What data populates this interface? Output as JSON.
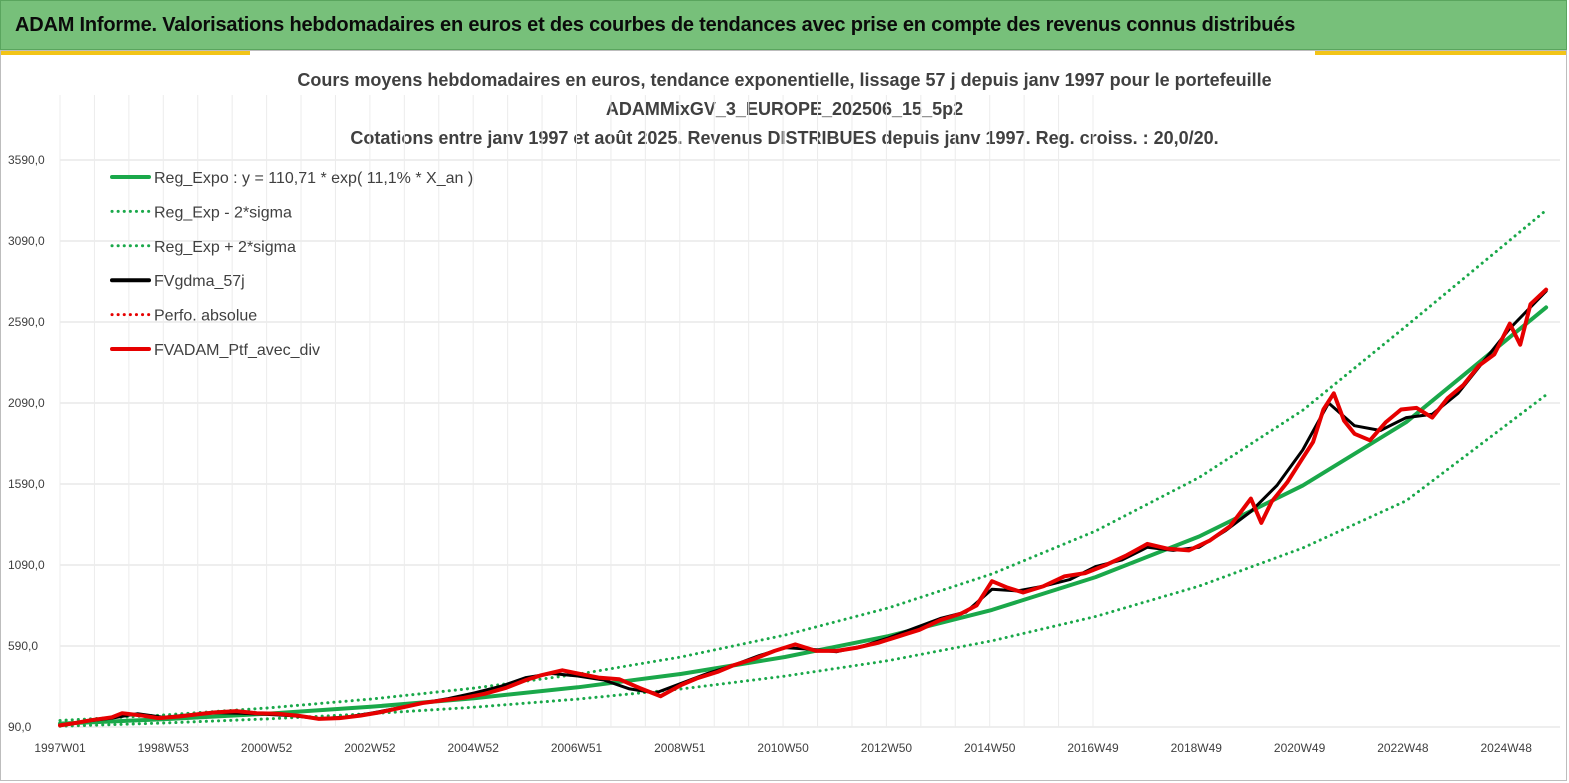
{
  "header": {
    "title": "ADAM Informe. Valorisations hebdomadaires en euros et des courbes de tendances avec prise en compte des revenus connus distribués"
  },
  "chart_data": {
    "type": "line",
    "title_lines": [
      "Cours moyens hebdomadaires  en euros, tendance exponentielle, lissage 57 j depuis janv 1997 pour le portefeuille",
      "ADAMMixGV_3_EUROPE_202506_15_5p2",
      "Cotations  entre janv 1997 et août 2025. Revenus DISTRIBUES depuis janv 1997. Reg. croiss. : 20,0/20."
    ],
    "x_ticks": [
      "1997W01",
      "1998W53",
      "2000W52",
      "2002W52",
      "2004W52",
      "2006W51",
      "2008W51",
      "2010W50",
      "2012W50",
      "2014W50",
      "2016W49",
      "2018W49",
      "2020W49",
      "2022W48",
      "2024W48"
    ],
    "y_ticks": [
      "90,0",
      "590,0",
      "1090,0",
      "1590,0",
      "2090,0",
      "2590,0",
      "3090,0",
      "3590,0"
    ],
    "ylim": [
      90,
      3590
    ],
    "grid": true,
    "legend_position": "top-left",
    "series": [
      {
        "name": "Reg_Expo : y = 110,71 * exp( 11,1% *  X_an )",
        "color": "#1aa84a",
        "style": "solid",
        "x": [
          1997.0,
          1999.0,
          2001.0,
          2003.0,
          2005.0,
          2007.0,
          2009.0,
          2011.0,
          2013.0,
          2015.0,
          2017.0,
          2019.0,
          2021.0,
          2023.0,
          2025.7
        ],
        "y": [
          110.7,
          138,
          172,
          215,
          268,
          335,
          418,
          522,
          651,
          813,
          1015,
          1266,
          1580,
          1972,
          2680
        ]
      },
      {
        "name": "Reg_Exp - 2*sigma",
        "color": "#1aa84a",
        "style": "dotted",
        "x": [
          1997.0,
          1999.0,
          2001.0,
          2003.0,
          2005.0,
          2007.0,
          2009.0,
          2011.0,
          2013.0,
          2015.0,
          2017.0,
          2019.0,
          2021.0,
          2023.0,
          2025.7
        ],
        "y": [
          95,
          115,
          140,
          172,
          212,
          262,
          325,
          404,
          500,
          622,
          772,
          960,
          1195,
          1487,
          2140
        ]
      },
      {
        "name": "Reg_Exp + 2*sigma",
        "color": "#1aa84a",
        "style": "dotted",
        "x": [
          1997.0,
          1999.0,
          2001.0,
          2003.0,
          2005.0,
          2007.0,
          2009.0,
          2011.0,
          2013.0,
          2015.0,
          2017.0,
          2019.0,
          2021.0,
          2023.0,
          2025.7
        ],
        "y": [
          130,
          164,
          207,
          262,
          330,
          416,
          523,
          657,
          825,
          1035,
          1300,
          1630,
          2045,
          2565,
          3280
        ]
      },
      {
        "name": "FVgdma_57j",
        "color": "#000000",
        "style": "solid",
        "x": [
          1997.0,
          1997.5,
          1998.0,
          1998.5,
          1999.0,
          1999.5,
          2000.0,
          2000.5,
          2001.0,
          2001.5,
          2002.0,
          2002.5,
          2003.0,
          2003.5,
          2004.0,
          2004.5,
          2005.0,
          2005.5,
          2006.0,
          2006.5,
          2007.0,
          2007.5,
          2008.0,
          2008.5,
          2009.0,
          2009.5,
          2010.0,
          2010.5,
          2011.0,
          2011.5,
          2012.0,
          2012.5,
          2013.0,
          2013.5,
          2014.0,
          2014.5,
          2015.0,
          2015.5,
          2016.0,
          2016.5,
          2017.0,
          2017.5,
          2018.0,
          2018.5,
          2019.0,
          2019.5,
          2020.0,
          2020.5,
          2021.0,
          2021.5,
          2022.0,
          2022.5,
          2023.0,
          2023.5,
          2024.0,
          2024.5,
          2025.0,
          2025.7
        ],
        "y": [
          100,
          125,
          145,
          172,
          150,
          165,
          178,
          175,
          168,
          160,
          142,
          150,
          175,
          205,
          238,
          265,
          300,
          340,
          395,
          420,
          405,
          380,
          325,
          300,
          360,
          420,
          470,
          530,
          580,
          570,
          555,
          590,
          640,
          700,
          760,
          800,
          940,
          930,
          960,
          1000,
          1080,
          1120,
          1200,
          1180,
          1200,
          1300,
          1420,
          1580,
          1800,
          2090,
          1950,
          1920,
          2000,
          2020,
          2150,
          2350,
          2550,
          2780
        ]
      },
      {
        "name": "Perfo. absolue",
        "color": "#e60000",
        "style": "dotted",
        "x": [
          1997.0,
          1998.0,
          1999.0,
          2000.0,
          2001.0,
          2002.0,
          2003.0,
          2004.0,
          2005.0,
          2006.0,
          2007.0,
          2008.0,
          2009.0,
          2010.0,
          2011.0,
          2012.0,
          2013.0,
          2014.0,
          2015.0,
          2016.0,
          2017.0,
          2018.0,
          2019.0,
          2020.0,
          2021.0,
          2022.0,
          2023.0,
          2024.0,
          2025.0,
          2025.7
        ],
        "y": [
          100,
          150,
          150,
          180,
          168,
          142,
          175,
          238,
          300,
          395,
          405,
          325,
          360,
          470,
          580,
          555,
          640,
          760,
          940,
          960,
          1080,
          1200,
          1200,
          1420,
          1800,
          1950,
          2000,
          2150,
          2550,
          2800
        ]
      },
      {
        "name": "FVADAM_Ptf_avec_div",
        "color": "#e60000",
        "style": "solid",
        "x": [
          1997.0,
          1997.3,
          1997.6,
          1998.0,
          1998.2,
          1998.6,
          1998.9,
          1999.3,
          1999.7,
          2000.0,
          2000.4,
          2000.8,
          2001.2,
          2001.6,
          2002.0,
          2002.4,
          2002.8,
          2003.2,
          2003.6,
          2004.0,
          2004.4,
          2004.8,
          2005.2,
          2005.6,
          2006.0,
          2006.3,
          2006.7,
          2007.0,
          2007.4,
          2007.8,
          2008.2,
          2008.6,
          2009.0,
          2009.3,
          2009.7,
          2010.0,
          2010.4,
          2010.8,
          2011.2,
          2011.6,
          2012.0,
          2012.4,
          2012.8,
          2013.2,
          2013.6,
          2014.0,
          2014.4,
          2014.7,
          2015.0,
          2015.3,
          2015.6,
          2016.0,
          2016.4,
          2016.8,
          2017.2,
          2017.6,
          2018.0,
          2018.4,
          2018.8,
          2019.2,
          2019.6,
          2020.0,
          2020.2,
          2020.4,
          2020.7,
          2021.0,
          2021.2,
          2021.4,
          2021.6,
          2021.8,
          2022.0,
          2022.3,
          2022.6,
          2022.9,
          2023.2,
          2023.5,
          2023.8,
          2024.1,
          2024.4,
          2024.7,
          2025.0,
          2025.2,
          2025.4,
          2025.7
        ],
        "y": [
          100,
          115,
          132,
          150,
          175,
          160,
          145,
          155,
          170,
          180,
          188,
          175,
          172,
          160,
          140,
          145,
          160,
          182,
          210,
          238,
          255,
          270,
          295,
          330,
          380,
          410,
          440,
          420,
          395,
          385,
          330,
          280,
          350,
          390,
          430,
          470,
          510,
          560,
          600,
          560,
          560,
          580,
          610,
          650,
          690,
          750,
          790,
          840,
          990,
          950,
          920,
          960,
          1020,
          1040,
          1090,
          1150,
          1220,
          1190,
          1180,
          1240,
          1330,
          1500,
          1350,
          1480,
          1600,
          1750,
          1850,
          2050,
          2150,
          1980,
          1900,
          1860,
          1970,
          2050,
          2060,
          2000,
          2120,
          2200,
          2320,
          2390,
          2580,
          2450,
          2700,
          2790
        ]
      }
    ]
  }
}
